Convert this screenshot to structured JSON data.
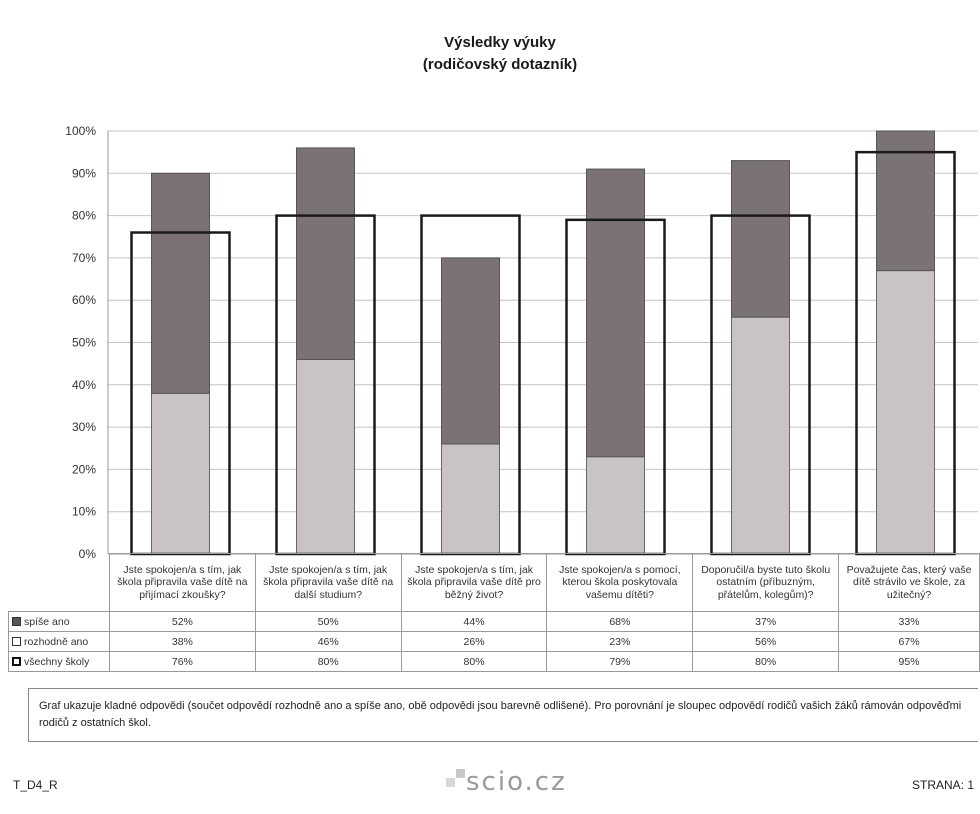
{
  "chart_data": {
    "type": "bar",
    "title": "Výsledky výuky",
    "subtitle": "(rodičovský dotazník)",
    "ylim": [
      0,
      100
    ],
    "yticks": [
      "0%",
      "10%",
      "20%",
      "30%",
      "40%",
      "50%",
      "60%",
      "70%",
      "80%",
      "90%",
      "100%"
    ],
    "grid": true,
    "categories": [
      "Jste spokojen/a s tím, jak škola připravila vaše dítě na přijímací zkoušky?",
      "Jste spokojen/a s tím, jak škola připravila vaše dítě na další studium?",
      "Jste spokojen/a s tím, jak škola připravila vaše dítě pro běžný život?",
      "Jste spokojen/a s pomocí, kterou škola poskytovala vašemu dítěti?",
      "Doporučil/a byste tuto školu ostatním (příbuzným, přátelům, kolegům)?",
      "Považujete čas, který vaše dítě strávilo ve škole, za užitečný?"
    ],
    "series": [
      {
        "name": "spíše ano",
        "labels": [
          "52%",
          "50%",
          "44%",
          "68%",
          "37%",
          "33%"
        ],
        "values": [
          52,
          50,
          44,
          68,
          37,
          33
        ],
        "color": "#7b7373"
      },
      {
        "name": "rozhodně ano",
        "labels": [
          "38%",
          "46%",
          "26%",
          "23%",
          "56%",
          "67%"
        ],
        "values": [
          38,
          46,
          26,
          23,
          56,
          67
        ],
        "color": "#c9c3c4"
      },
      {
        "name": "všechny školy",
        "labels": [
          "76%",
          "80%",
          "80%",
          "79%",
          "80%",
          "95%"
        ],
        "values": [
          76,
          80,
          80,
          79,
          80,
          95
        ],
        "color": "#1a1a1a"
      }
    ]
  },
  "note": "Graf ukazuje kladné odpovědi (součet odpovědí rozhodně ano a spíše ano, obě odpovědi jsou barevně odlišené). Pro porovnání je sloupec odpovědí rodičů vašich žáků rámován odpověďmi rodičů z ostatních škol.",
  "footer": {
    "code": "T_D4_R",
    "logo": "scio.cz",
    "page": "STRANA: 1"
  }
}
